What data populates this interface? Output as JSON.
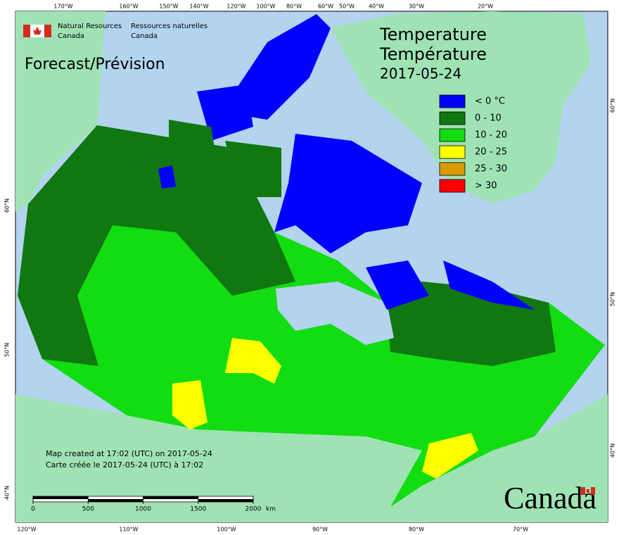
{
  "header": {
    "agency_en": [
      "Natural Resources",
      "Canada"
    ],
    "agency_fr": [
      "Ressources naturelles",
      "Canada"
    ]
  },
  "subtitle": "Forecast/Prévision",
  "title": [
    "Temperature",
    "Température"
  ],
  "date": "2017-05-24",
  "legend": [
    {
      "label": "< 0 °C",
      "color": "#0000ff"
    },
    {
      "label": "0 - 10",
      "color": "#117711"
    },
    {
      "label": "10 - 20",
      "color": "#11dd11"
    },
    {
      "label": "20 - 25",
      "color": "#ffff00"
    },
    {
      "label": "25 - 30",
      "color": "#dd9900"
    },
    {
      "label": "> 30",
      "color": "#ff0000"
    }
  ],
  "credits": [
    "Map created at 17:02 (UTC) on 2017-05-24",
    "Carte créée le 2017-05-24 (UTC) à 17:02"
  ],
  "scale_bar": {
    "ticks": [
      0,
      500,
      1000,
      1500,
      2000
    ],
    "unit": "km"
  },
  "wordmark": "Canada",
  "graticule": {
    "top": [
      "170°W",
      "160°W",
      "150°W",
      "140°W",
      "120°W",
      "100°W",
      "80°W",
      "60°W",
      "50°W",
      "40°W",
      "30°W",
      "20°W"
    ],
    "bottom": [
      "120°W",
      "110°W",
      "100°W",
      "90°W",
      "80°W",
      "70°W"
    ],
    "left": [
      "60°N",
      "50°N",
      "40°N"
    ],
    "right": [
      "60°N",
      "50°N",
      "40°N"
    ]
  }
}
